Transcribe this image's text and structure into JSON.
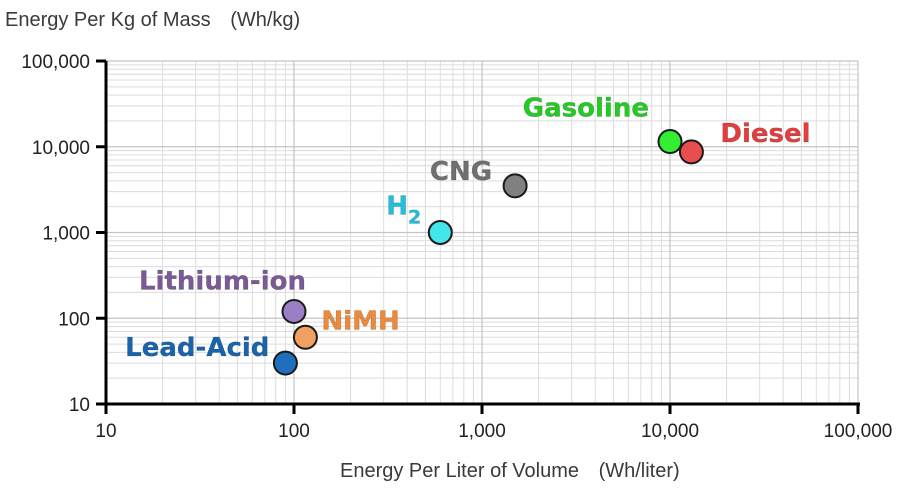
{
  "chart_data": {
    "type": "scatter",
    "title": "",
    "ylabel": "Energy Per Kg of Mass",
    "ylabel_unit": "(Wh/kg)",
    "xlabel": "Energy Per Liter of Volume",
    "xlabel_unit": "(Wh/liter)",
    "xscale": "log",
    "yscale": "log",
    "xlim": [
      10,
      100000
    ],
    "ylim": [
      10,
      100000
    ],
    "grid": true,
    "x_ticks": [
      10,
      100,
      1000,
      10000,
      100000
    ],
    "x_tick_labels": [
      "10",
      "100",
      "1,000",
      "10,000",
      "100,000"
    ],
    "y_ticks": [
      10,
      100,
      1000,
      10000,
      100000
    ],
    "y_tick_labels": [
      "10",
      "100",
      "1,000",
      "10,000",
      "100,000"
    ],
    "points": [
      {
        "name": "Lead-Acid",
        "x": 90,
        "y": 30,
        "color": "#1f6fbf",
        "label_color": "#1a63ad"
      },
      {
        "name": "NiMH",
        "x": 115,
        "y": 60,
        "color": "#f0a060",
        "label_color": "#ee8a3a"
      },
      {
        "name": "Lithium-ion",
        "x": 100,
        "y": 120,
        "color": "#9b7fc6",
        "label_color": "#7b5a96"
      },
      {
        "name": "H2",
        "x": 600,
        "y": 1000,
        "color": "#44e6ee",
        "label_color": "#22bfdd"
      },
      {
        "name": "CNG",
        "x": 1500,
        "y": 3500,
        "color": "#808080",
        "label_color": "#707070"
      },
      {
        "name": "Gasoline",
        "x": 10000,
        "y": 11500,
        "color": "#33ee33",
        "label_color": "#22cc22"
      },
      {
        "name": "Diesel",
        "x": 13000,
        "y": 8700,
        "color": "#e84e4e",
        "label_color": "#e33e3e"
      }
    ]
  }
}
